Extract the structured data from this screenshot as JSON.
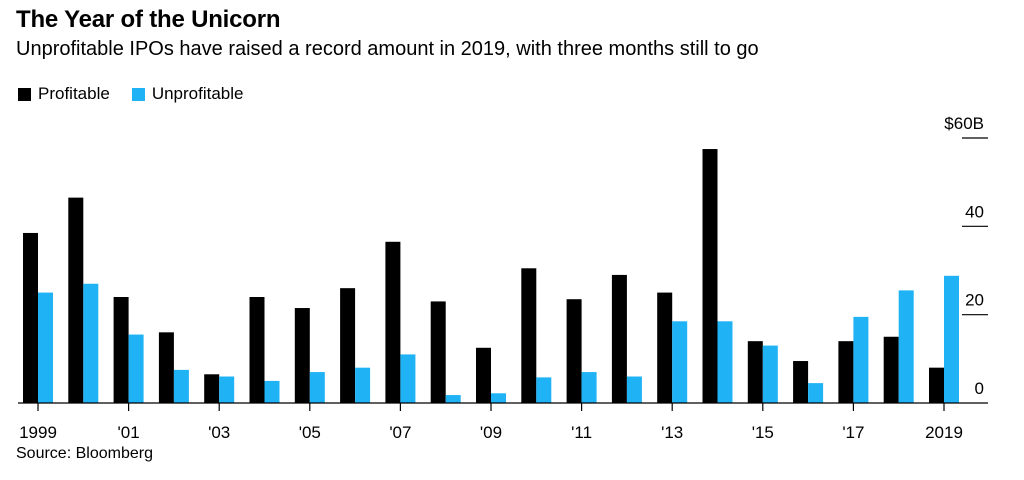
{
  "chart_data": {
    "type": "bar",
    "title": "The Year of the Unicorn",
    "subtitle": "Unprofitable IPOs have raised a record amount in 2019, with three months still to go",
    "source": "Source: Bloomberg",
    "categories": [
      "1999",
      "2000",
      "2001",
      "2002",
      "2003",
      "2004",
      "2005",
      "2006",
      "2007",
      "2008",
      "2009",
      "2010",
      "2011",
      "2012",
      "2013",
      "2014",
      "2015",
      "2016",
      "2017",
      "2018",
      "2019"
    ],
    "x_tick_labels": [
      "1999",
      "'01",
      "'03",
      "'05",
      "'07",
      "'09",
      "'11",
      "'13",
      "'15",
      "'17",
      "2019"
    ],
    "x_tick_years": [
      1999,
      2001,
      2003,
      2005,
      2007,
      2009,
      2011,
      2013,
      2015,
      2017,
      2019
    ],
    "y_tick_labels": [
      "$60B",
      "40",
      "20",
      "0"
    ],
    "y_tick_values": [
      60,
      40,
      20,
      0
    ],
    "ylim": [
      0,
      60
    ],
    "grid": false,
    "legend_position": "top-left",
    "series": [
      {
        "name": "Profitable",
        "color": "#000000",
        "values": [
          38.5,
          46.5,
          24,
          16,
          6.5,
          24,
          21.5,
          26,
          36.5,
          23,
          12.5,
          30.5,
          23.5,
          29,
          25,
          57.5,
          14,
          9.5,
          14,
          15,
          8
        ]
      },
      {
        "name": "Unprofitable",
        "color": "#1FB3F5",
        "values": [
          25,
          27,
          15.5,
          7.5,
          6,
          5,
          7,
          8,
          11,
          1.8,
          2.2,
          5.8,
          7,
          6,
          18.5,
          18.5,
          13,
          4.5,
          19.5,
          25.5,
          28.8
        ]
      }
    ]
  }
}
